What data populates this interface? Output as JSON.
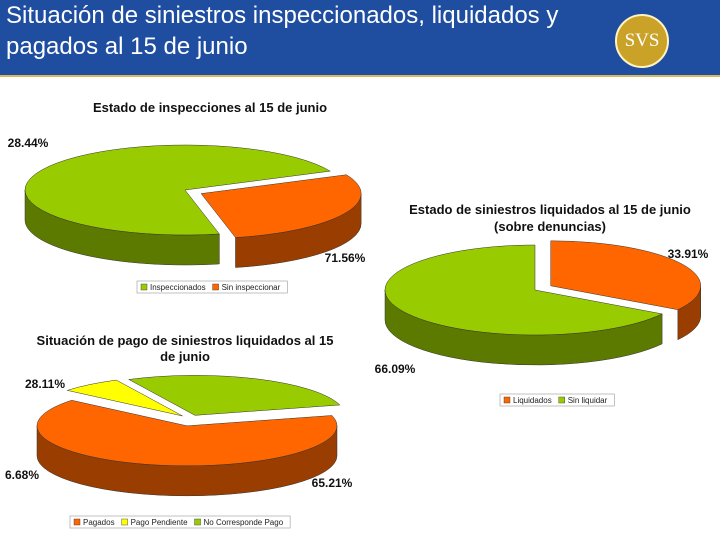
{
  "header": {
    "title": "Situación de siniestros inspeccionados, liquidados y pagados al 15 de junio",
    "logo": "SVS"
  },
  "chart_data": [
    {
      "type": "pie",
      "title": "Estado de inspecciones al 15 de junio",
      "categories": [
        "Inspeccionados",
        "Sin inspeccionar"
      ],
      "values": [
        71.56,
        28.44
      ],
      "value_labels": [
        "71.56%",
        "28.44%"
      ],
      "colors": [
        "#99cc00",
        "#ff6600"
      ]
    },
    {
      "type": "pie",
      "title": "Estado de siniestros liquidados al 15 de junio",
      "subtitle": "(sobre denuncias)",
      "categories": [
        "Liquidados",
        "Sin liquidar"
      ],
      "values": [
        33.91,
        66.09
      ],
      "value_labels": [
        "33.91%",
        "66.09%"
      ],
      "colors": [
        "#ff6600",
        "#99cc00"
      ]
    },
    {
      "type": "pie",
      "title": "Situación de pago de siniestros liquidados al 15 de junio",
      "categories": [
        "Pagados",
        "Pago Pendiente",
        "No Corresponde Pago"
      ],
      "values": [
        65.21,
        6.68,
        28.11
      ],
      "value_labels": [
        "65.21%",
        "6.68%",
        "28.11%"
      ],
      "colors": [
        "#ff6600",
        "#ffff00",
        "#99cc00"
      ]
    }
  ]
}
